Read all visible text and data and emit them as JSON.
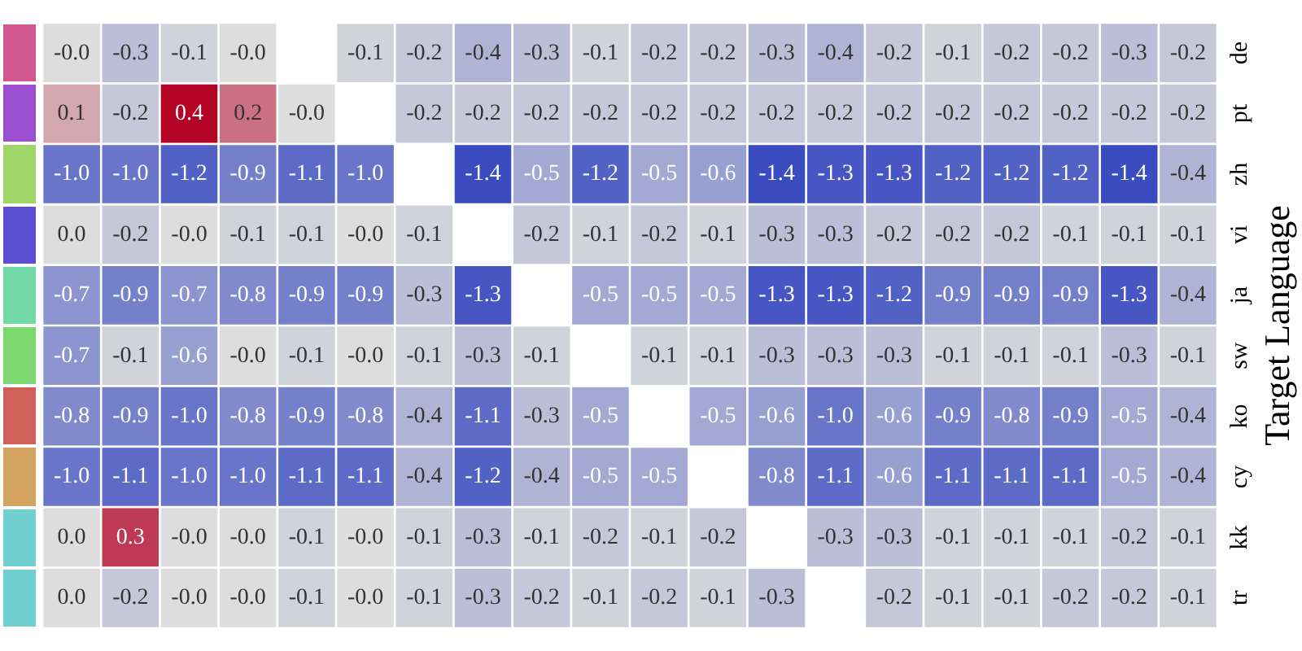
{
  "chart_data": {
    "type": "heatmap",
    "ylabel": "Target Language",
    "categories": [
      null,
      null,
      null,
      null,
      null,
      null,
      null,
      null,
      null,
      null,
      null,
      null,
      null,
      null,
      null,
      null,
      null,
      null,
      null,
      null
    ],
    "y_categories": [
      "de",
      "pt",
      "zh",
      "vi",
      "ja",
      "sw",
      "ko",
      "cy",
      "kk",
      "tr"
    ],
    "cells": [
      [
        -0.0,
        -0.3,
        -0.1,
        -0.0,
        null,
        -0.1,
        -0.2,
        -0.4,
        -0.3,
        -0.1,
        -0.2,
        -0.2,
        -0.3,
        -0.4,
        -0.2,
        -0.1,
        -0.2,
        -0.2,
        -0.3,
        -0.2
      ],
      [
        0.1,
        -0.2,
        0.4,
        0.2,
        -0.0,
        null,
        -0.2,
        -0.2,
        -0.2,
        -0.2,
        -0.2,
        -0.2,
        -0.2,
        -0.2,
        -0.2,
        -0.2,
        -0.2,
        -0.2,
        -0.2,
        -0.2
      ],
      [
        -1.0,
        -1.0,
        -1.2,
        -0.9,
        -1.1,
        -1.0,
        null,
        -1.4,
        -0.5,
        -1.2,
        -0.5,
        -0.6,
        -1.4,
        -1.3,
        -1.3,
        -1.2,
        -1.2,
        -1.2,
        -1.4,
        -0.4
      ],
      [
        0.0,
        -0.2,
        -0.0,
        -0.1,
        -0.1,
        -0.0,
        -0.1,
        null,
        -0.2,
        -0.1,
        -0.2,
        -0.1,
        -0.3,
        -0.3,
        -0.2,
        -0.2,
        -0.2,
        -0.1,
        -0.1,
        -0.1
      ],
      [
        -0.7,
        -0.9,
        -0.7,
        -0.8,
        -0.9,
        -0.9,
        -0.3,
        -1.3,
        null,
        -0.5,
        -0.5,
        -0.5,
        -1.3,
        -1.3,
        -1.2,
        -0.9,
        -0.9,
        -0.9,
        -1.3,
        -0.4
      ],
      [
        -0.7,
        -0.1,
        -0.6,
        -0.0,
        -0.1,
        -0.0,
        -0.1,
        -0.3,
        -0.1,
        null,
        -0.1,
        -0.1,
        -0.3,
        -0.3,
        -0.3,
        -0.1,
        -0.1,
        -0.1,
        -0.3,
        -0.1
      ],
      [
        -0.8,
        -0.9,
        -1.0,
        -0.8,
        -0.9,
        -0.8,
        -0.4,
        -1.1,
        -0.3,
        -0.5,
        null,
        -0.5,
        -0.6,
        -1.0,
        -0.6,
        -0.9,
        -0.8,
        -0.9,
        -0.5,
        -0.4
      ],
      [
        -1.0,
        -1.1,
        -1.0,
        -1.0,
        -1.1,
        -1.1,
        -0.4,
        -1.2,
        -0.4,
        -0.5,
        -0.5,
        null,
        -0.8,
        -1.1,
        -0.6,
        -1.1,
        -1.1,
        -1.1,
        -0.5,
        -0.4
      ],
      [
        0.0,
        0.3,
        -0.0,
        -0.0,
        -0.1,
        -0.0,
        -0.1,
        -0.3,
        -0.1,
        -0.2,
        -0.1,
        -0.2,
        null,
        -0.3,
        -0.3,
        -0.1,
        -0.1,
        -0.1,
        -0.2,
        -0.1
      ],
      [
        0.0,
        -0.2,
        -0.0,
        -0.0,
        -0.1,
        -0.0,
        -0.1,
        -0.3,
        -0.2,
        -0.1,
        -0.2,
        -0.1,
        -0.3,
        null,
        -0.2,
        -0.1,
        -0.1,
        -0.2,
        -0.2,
        -0.1
      ]
    ],
    "cell_labels": [
      [
        "-0.0",
        "-0.3",
        "-0.1",
        "-0.0",
        null,
        "-0.1",
        "-0.2",
        "-0.4",
        "-0.3",
        "-0.1",
        "-0.2",
        "-0.2",
        "-0.3",
        "-0.4",
        "-0.2",
        "-0.1",
        "-0.2",
        "-0.2",
        "-0.3",
        "-0.2"
      ],
      [
        "0.1",
        "-0.2",
        "0.4",
        "0.2",
        "-0.0",
        null,
        "-0.2",
        "-0.2",
        "-0.2",
        "-0.2",
        "-0.2",
        "-0.2",
        "-0.2",
        "-0.2",
        "-0.2",
        "-0.2",
        "-0.2",
        "-0.2",
        "-0.2",
        "-0.2"
      ],
      [
        "-1.0",
        "-1.0",
        "-1.2",
        "-0.9",
        "-1.1",
        "-1.0",
        null,
        "-1.4",
        "-0.5",
        "-1.2",
        "-0.5",
        "-0.6",
        "-1.4",
        "-1.3",
        "-1.3",
        "-1.2",
        "-1.2",
        "-1.2",
        "-1.4",
        "-0.4"
      ],
      [
        "0.0",
        "-0.2",
        "-0.0",
        "-0.1",
        "-0.1",
        "-0.0",
        "-0.1",
        null,
        "-0.2",
        "-0.1",
        "-0.2",
        "-0.1",
        "-0.3",
        "-0.3",
        "-0.2",
        "-0.2",
        "-0.2",
        "-0.1",
        "-0.1",
        "-0.1"
      ],
      [
        "-0.7",
        "-0.9",
        "-0.7",
        "-0.8",
        "-0.9",
        "-0.9",
        "-0.3",
        "-1.3",
        null,
        "-0.5",
        "-0.5",
        "-0.5",
        "-1.3",
        "-1.3",
        "-1.2",
        "-0.9",
        "-0.9",
        "-0.9",
        "-1.3",
        "-0.4"
      ],
      [
        "-0.7",
        "-0.1",
        "-0.6",
        "-0.0",
        "-0.1",
        "-0.0",
        "-0.1",
        "-0.3",
        "-0.1",
        null,
        "-0.1",
        "-0.1",
        "-0.3",
        "-0.3",
        "-0.3",
        "-0.1",
        "-0.1",
        "-0.1",
        "-0.3",
        "-0.1"
      ],
      [
        "-0.8",
        "-0.9",
        "-1.0",
        "-0.8",
        "-0.9",
        "-0.8",
        "-0.4",
        "-1.1",
        "-0.3",
        "-0.5",
        null,
        "-0.5",
        "-0.6",
        "-1.0",
        "-0.6",
        "-0.9",
        "-0.8",
        "-0.9",
        "-0.5",
        "-0.4"
      ],
      [
        "-1.0",
        "-1.1",
        "-1.0",
        "-1.0",
        "-1.1",
        "-1.1",
        "-0.4",
        "-1.2",
        "-0.4",
        "-0.5",
        "-0.5",
        null,
        "-0.8",
        "-1.1",
        "-0.6",
        "-1.1",
        "-1.1",
        "-1.1",
        "-0.5",
        "-0.4"
      ],
      [
        "0.0",
        "0.3",
        "-0.0",
        "-0.0",
        "-0.1",
        "-0.0",
        "-0.1",
        "-0.3",
        "-0.1",
        "-0.2",
        "-0.1",
        "-0.2",
        null,
        "-0.3",
        "-0.3",
        "-0.1",
        "-0.1",
        "-0.1",
        "-0.2",
        "-0.1"
      ],
      [
        "0.0",
        "-0.2",
        "-0.0",
        "-0.0",
        "-0.1",
        "-0.0",
        "-0.1",
        "-0.3",
        "-0.2",
        "-0.1",
        "-0.2",
        "-0.1",
        "-0.3",
        null,
        "-0.2",
        "-0.1",
        "-0.1",
        "-0.2",
        "-0.2",
        "-0.1"
      ]
    ]
  }
}
